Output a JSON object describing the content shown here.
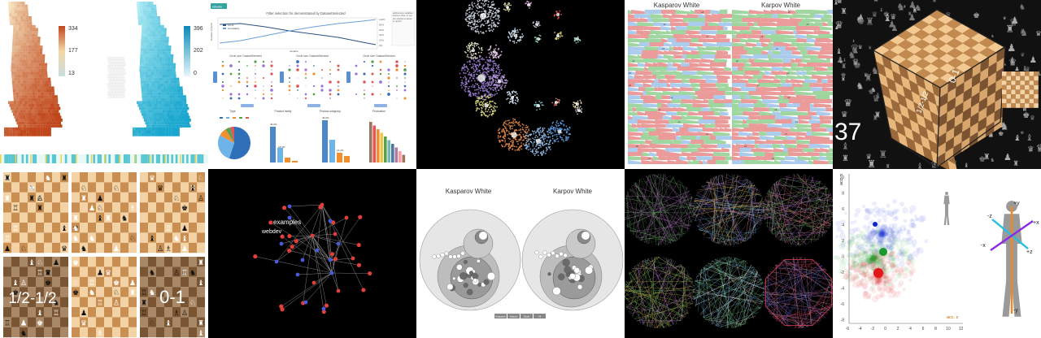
{
  "mosaic_label": "visualization gallery",
  "heatmaps": {
    "left_max": "334",
    "left_mid": "177",
    "left_min": "13",
    "right_max": "396",
    "right_mid": "202",
    "right_min": "0",
    "low_color": "#f7e9c4",
    "high_color": "#c0461b",
    "alt_low": "#1aa7cf",
    "alt_high": "#b8f0f5"
  },
  "dashboard": {
    "logo": "rstudio",
    "title": "Filter selection for demonstrated by DatasetSelected",
    "y_left": "Number of items",
    "x_axis": "variable",
    "legend": [
      "count",
      "cumulative"
    ],
    "right_pct": [
      "100%",
      "80%",
      "60%",
      "40%",
      "20%",
      "0%"
    ],
    "sidebar": "add/remove variables below to filter, or use the selections above to restrict",
    "panel_titles": [
      "Circle size: DatasetSelected",
      "Circle size: DatasetSelected",
      "Circle size: DatasetSelected"
    ],
    "chart_titles": [
      "Type",
      "Product family",
      "Product subgroup",
      "Production"
    ],
    "bar_labels": [
      "1.8%",
      "46.2%",
      "18.4%",
      "12.2%"
    ],
    "pie_colors": [
      "#2f6fb7",
      "#6fb4e8",
      "#f28e2b",
      "#59a14f",
      "#e15759"
    ]
  },
  "clusters": {
    "bg": "#000000"
  },
  "chess_timeline": {
    "left_title": "Kasparov White",
    "right_title": "Karpov White"
  },
  "cube": {
    "number": "37",
    "face_text": [
      "0-1",
      "1/2-1/2"
    ]
  },
  "boards": {
    "results": [
      "1/2-1/2",
      "0-1"
    ]
  },
  "network": {
    "labels": [
      "examples",
      "webdev"
    ]
  },
  "bubbles": {
    "left_title": "Kasparov White",
    "right_title": "Karpov White",
    "buttons": [
      "Kasparov",
      "Karpov",
      "Draw",
      "All"
    ]
  },
  "mandalas": {
    "bg": "#000000"
  },
  "accel": {
    "y_label": "acc. x",
    "x_label": "acc. z",
    "x_ticks": [
      "-6",
      "-4",
      "-2",
      "0",
      "2",
      "4",
      "6",
      "8",
      "10",
      "12"
    ],
    "y_ticks": [
      "10",
      "8",
      "6",
      "4",
      "2",
      "0",
      "-2",
      "-4",
      "-6",
      "-8"
    ],
    "axes": [
      "+y",
      "-z",
      "+x",
      "-x",
      "+z",
      "-y"
    ]
  }
}
